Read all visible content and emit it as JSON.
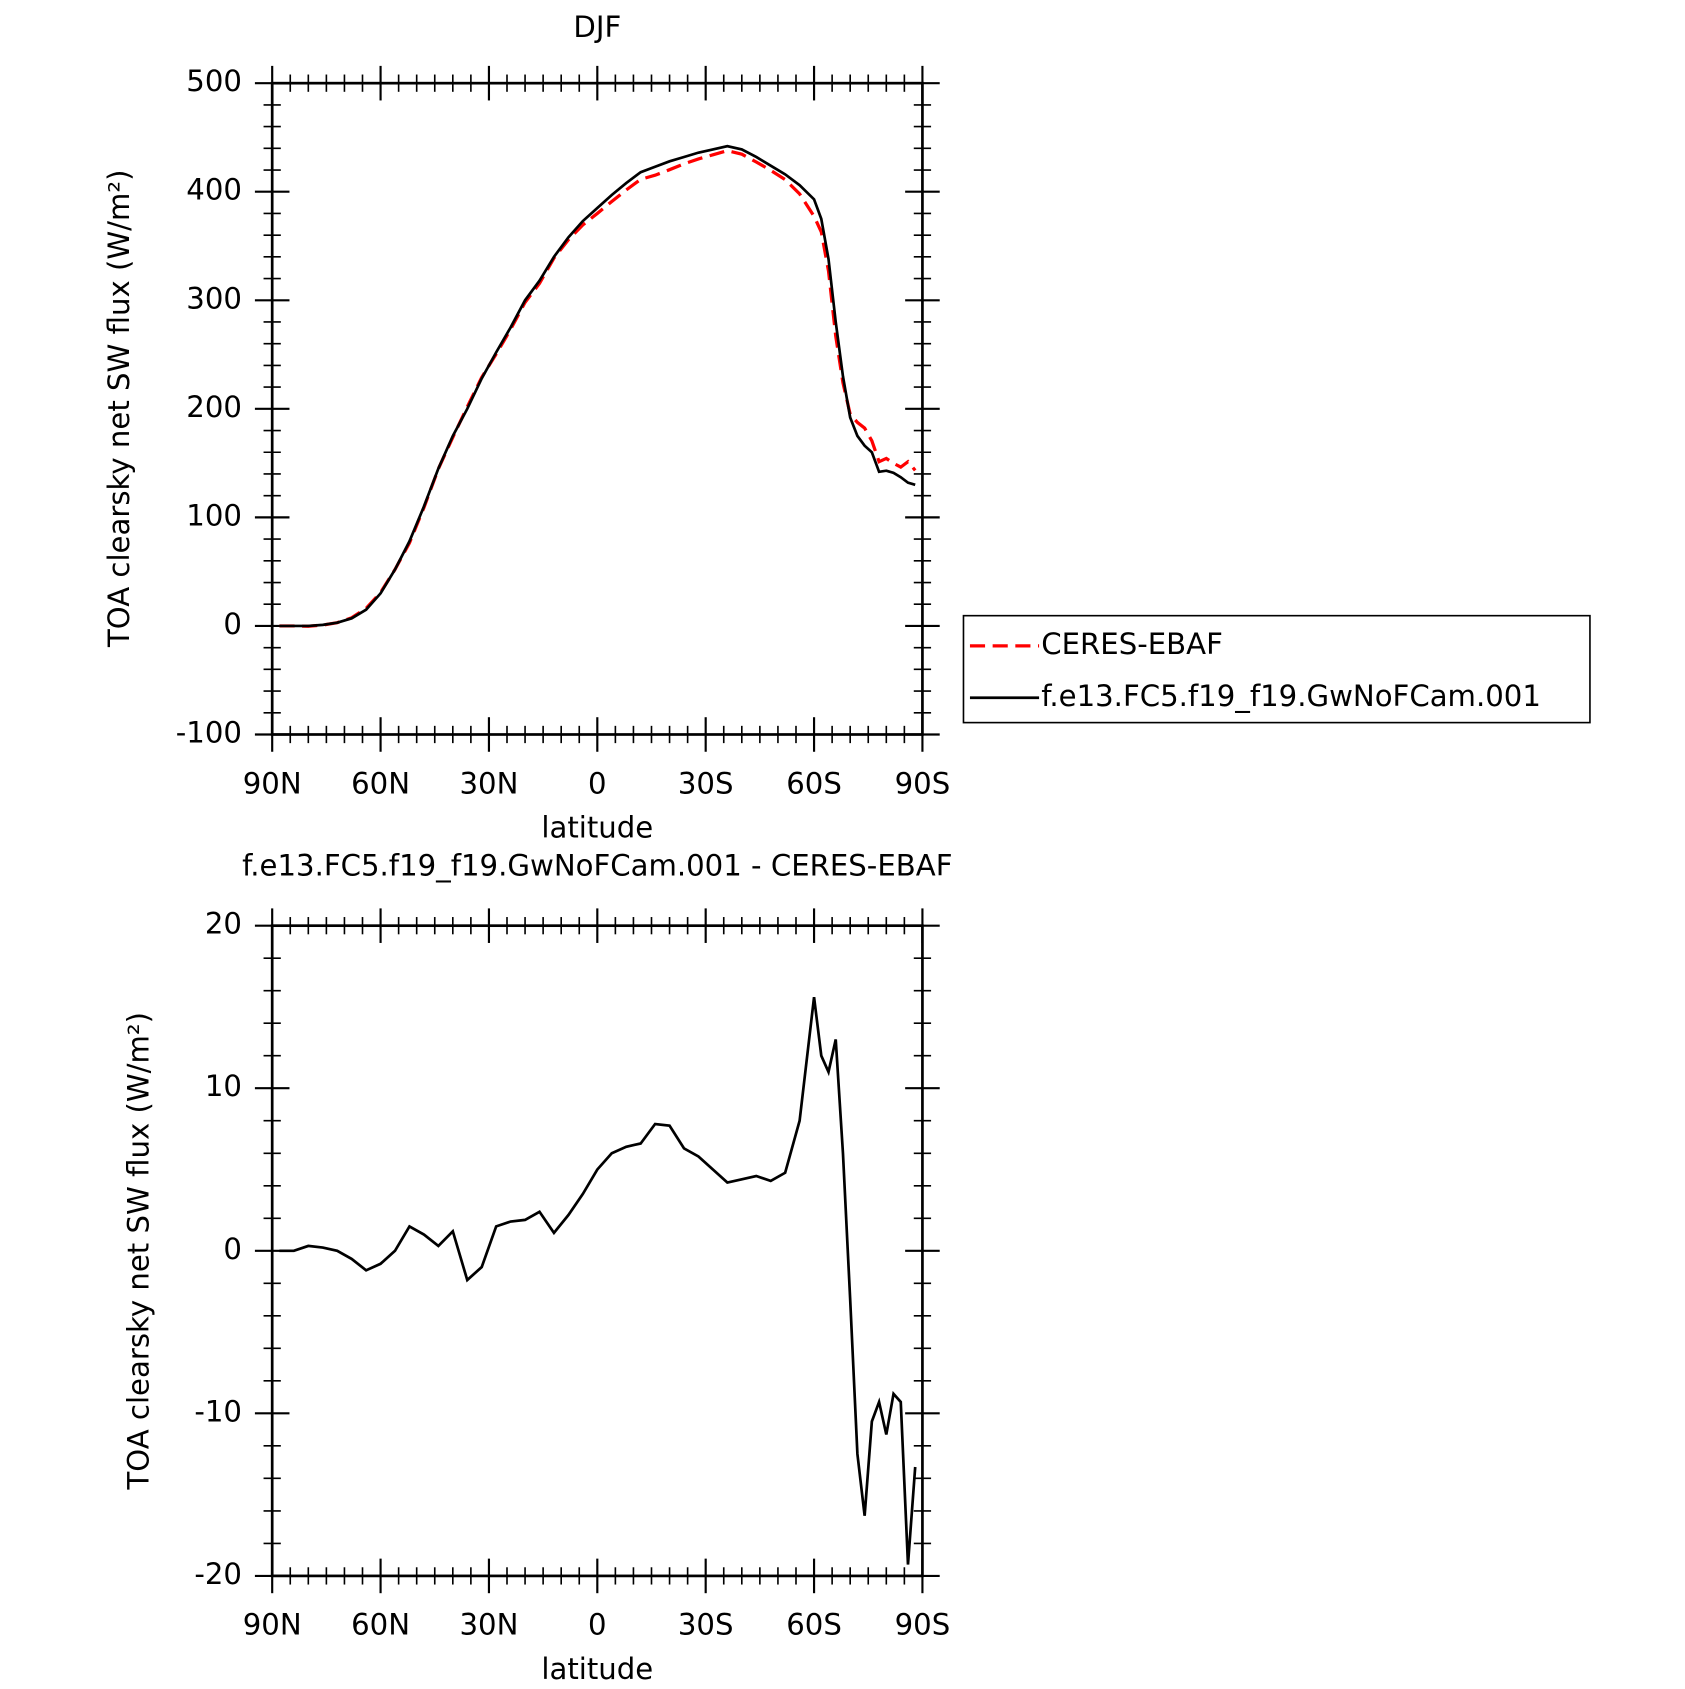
{
  "chart_data": [
    {
      "type": "line",
      "title": "DJF",
      "x_label": "latitude",
      "y_label": "TOA clearsky net SW flux (W/m²)",
      "x": [
        88,
        84,
        80,
        76,
        72,
        68,
        64,
        60,
        56,
        52,
        48,
        44,
        40,
        36,
        32,
        28,
        24,
        20,
        16,
        12,
        8,
        4,
        0,
        -4,
        -8,
        -12,
        -16,
        -20,
        -24,
        -28,
        -32,
        -36,
        -40,
        -44,
        -48,
        -52,
        -56,
        -60,
        -62,
        -64,
        -66,
        -68,
        -70,
        -72,
        -74,
        -76,
        -78,
        -80,
        -82,
        -84,
        -86,
        -88
      ],
      "xlim": [
        90,
        -90
      ],
      "xticks": [
        {
          "value": 90,
          "label": "90N"
        },
        {
          "value": 60,
          "label": "60N"
        },
        {
          "value": 30,
          "label": "30N"
        },
        0,
        {
          "value": -30,
          "label": "30S"
        },
        {
          "value": -60,
          "label": "60S"
        },
        {
          "value": -90,
          "label": "90S"
        }
      ],
      "ylim": [
        -100,
        500
      ],
      "yticks": [
        -100,
        0,
        100,
        200,
        300,
        400,
        500
      ],
      "series": [
        {
          "name": "CERES-EBAF",
          "color": "#ff0000",
          "dash": true,
          "values": [
            0,
            0,
            -0.3,
            0.8,
            3,
            7.5,
            16.2,
            30.8,
            52,
            76.5,
            109,
            144.7,
            173.8,
            201.8,
            229,
            250.5,
            273.2,
            298.1,
            315.6,
            338.9,
            355.8,
            369.5,
            380,
            391,
            401.6,
            411.4,
            415.2,
            420.3,
            425.7,
            430.2,
            434,
            437.8,
            434.6,
            427.4,
            419.7,
            411.2,
            398,
            377.4,
            363,
            327,
            267,
            224,
            195,
            187.5,
            182.3,
            170.5,
            151.3,
            154.3,
            149.8,
            146.3,
            151.3,
            143.3
          ]
        },
        {
          "name": "f.e13.FC5.f19_f19.GwNoFCam.001",
          "color": "#000000",
          "dash": false,
          "values": [
            0,
            0,
            0,
            1,
            3,
            7,
            15,
            30,
            52,
            78,
            110,
            145,
            175,
            200,
            228,
            252,
            275,
            300,
            318,
            340,
            358,
            373,
            385,
            397,
            408,
            418,
            423,
            428,
            432,
            436,
            439,
            442,
            439,
            432,
            424,
            416,
            406,
            393,
            375,
            338,
            280,
            230,
            192,
            175,
            166,
            160,
            142,
            143,
            141,
            137,
            132,
            130
          ]
        }
      ]
    },
    {
      "type": "line",
      "title": "f.e13.FC5.f19_f19.GwNoFCam.001 - CERES-EBAF",
      "x_label": "latitude",
      "y_label": "TOA clearsky net SW flux (W/m²)",
      "x": [
        88,
        84,
        80,
        76,
        72,
        68,
        64,
        60,
        56,
        52,
        48,
        44,
        40,
        36,
        32,
        28,
        24,
        20,
        16,
        12,
        8,
        4,
        0,
        -4,
        -8,
        -12,
        -16,
        -20,
        -24,
        -28,
        -32,
        -36,
        -40,
        -44,
        -48,
        -52,
        -56,
        -60,
        -62,
        -64,
        -66,
        -68,
        -70,
        -72,
        -74,
        -76,
        -78,
        -80,
        -82,
        -84,
        -86,
        -88
      ],
      "xlim": [
        90,
        -90
      ],
      "xticks": [
        {
          "value": 90,
          "label": "90N"
        },
        {
          "value": 60,
          "label": "60N"
        },
        {
          "value": 30,
          "label": "30N"
        },
        0,
        {
          "value": -30,
          "label": "30S"
        },
        {
          "value": -60,
          "label": "60S"
        },
        {
          "value": -90,
          "label": "90S"
        }
      ],
      "ylim": [
        -20,
        20
      ],
      "yticks": [
        -20,
        -10,
        0,
        10,
        20
      ],
      "series": [
        {
          "color": "#000000",
          "dash": false,
          "values": [
            0,
            0,
            0.3,
            0.2,
            0,
            -0.5,
            -1.2,
            -0.8,
            0,
            1.5,
            1,
            0.3,
            1.2,
            -1.8,
            -1,
            1.5,
            1.8,
            1.9,
            2.4,
            1.1,
            2.2,
            3.5,
            5,
            6,
            6.4,
            6.6,
            7.8,
            7.7,
            6.3,
            5.8,
            5,
            4.2,
            4.4,
            4.6,
            4.3,
            4.8,
            8,
            15.6,
            12,
            11,
            13,
            6,
            -3,
            -12.5,
            -16.3,
            -10.5,
            -9.3,
            -11.3,
            -8.8,
            -9.3,
            -19.3,
            -13.3
          ]
        }
      ]
    }
  ]
}
